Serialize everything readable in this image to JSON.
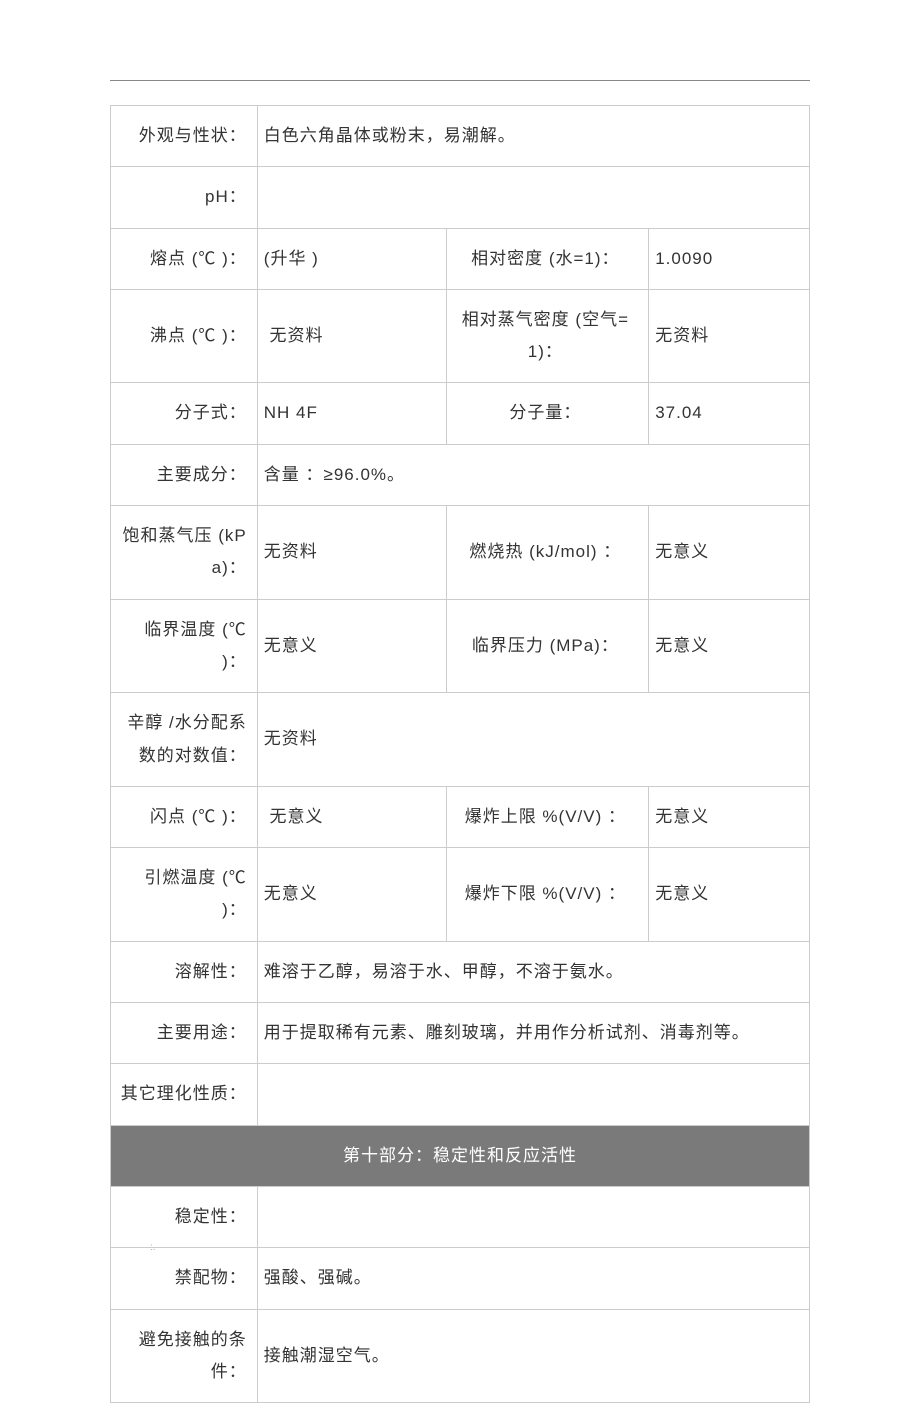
{
  "rows": {
    "appearance_label": "外观与性状：",
    "appearance_value": "白色六角晶体或粉末，易潮解。",
    "ph_label": "pH：",
    "ph_value": "",
    "melting_label": "熔点 (℃ )：",
    "melting_value": "(升华 )",
    "rel_density_label": "相对密度 (水=1)：",
    "rel_density_value": "1.0090",
    "boiling_label": "沸点 (℃ )：",
    "boiling_value": " 无资料",
    "rel_vapor_density_label": "相对蒸气密度 (空气=1)：",
    "rel_vapor_density_value": "无资料",
    "formula_label": "分子式：",
    "formula_value": "NH 4F",
    "mw_label": "分子量：",
    "mw_value": "37.04",
    "main_component_label": "主要成分：",
    "main_component_value": "含量 ：≥96.0%。",
    "vapor_pressure_label": "饱和蒸气压 (kPa)：",
    "vapor_pressure_value": "无资料",
    "combustion_heat_label": "燃烧热 (kJ/mol) ：",
    "combustion_heat_value": "无意义",
    "critical_temp_label": "临界温度 (℃ )：",
    "critical_temp_value": "无意义",
    "critical_pressure_label": "临界压力 (MPa)：",
    "critical_pressure_value": "无意义",
    "logp_label": "辛醇 /水分配系数的对数值：",
    "logp_value": "无资料",
    "flash_label": "闪点 (℃ )：",
    "flash_value": " 无意义",
    "uel_label": "爆炸上限 %(V/V) ：",
    "uel_value": "无意义",
    "ignition_label": "引燃温度 (℃ )：",
    "ignition_value": "无意义",
    "lel_label": "爆炸下限 %(V/V) ：",
    "lel_value": "无意义",
    "solubility_label": "溶解性：",
    "solubility_value": "难溶于乙醇，易溶于水、甲醇，不溶于氨水。",
    "main_use_label": "主要用途：",
    "main_use_value": "用于提取稀有元素、雕刻玻璃，并用作分析试剂、消毒剂等。",
    "other_props_label": "其它理化性质：",
    "other_props_value": "",
    "section10_title": "第十部分：稳定性和反应活性",
    "stability_label": "稳定性：",
    "stability_value": "",
    "incompatible_label": "禁配物：",
    "incompatible_value": "强酸、强碱。",
    "avoid_conditions_label": "避免接触的条件：",
    "avoid_conditions_value": "接触潮湿空气。"
  },
  "footer_mark": ":."
}
